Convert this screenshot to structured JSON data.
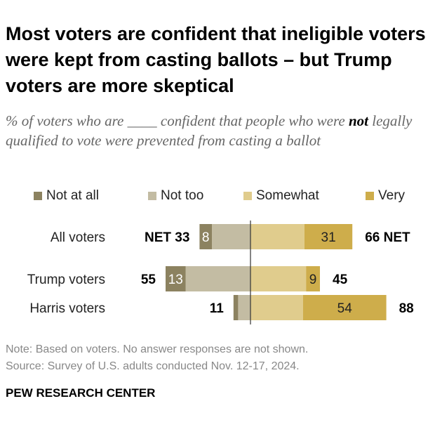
{
  "title": "Most voters are confident that ineligible voters were kept from casting ballots – but Trump voters are more skeptical",
  "subtitle_before": "% of voters who are ____ confident that people who were ",
  "subtitle_bold": "not",
  "subtitle_after": " legally qualified to vote were prevented from casting a ballot",
  "note": "Note: Based on voters. No answer responses are not shown.",
  "source": "Source: Survey of U.S. adults conducted Nov. 12-17, 2024.",
  "logo": "PEW RESEARCH CENTER",
  "chart_data": {
    "type": "bar",
    "orientation": "horizontal-diverging",
    "categories": [
      "All voters",
      "Trump voters",
      "Harris voters"
    ],
    "series": [
      {
        "name": "Not at all",
        "values": [
          8,
          13,
          3
        ],
        "color": "#8c8260",
        "side": "negative"
      },
      {
        "name": "Not too",
        "values": [
          25,
          42,
          8
        ],
        "color": "#c3bca3",
        "side": "negative"
      },
      {
        "name": "Somewhat",
        "values": [
          35,
          36,
          34
        ],
        "color": "#e0cc8d",
        "side": "positive"
      },
      {
        "name": "Very",
        "values": [
          31,
          9,
          54
        ],
        "color": "#cead4b",
        "side": "positive"
      }
    ],
    "net_negative": [
      33,
      55,
      11
    ],
    "net_positive": [
      66,
      45,
      88
    ],
    "net_label": "NET",
    "data_labels_shown": {
      "Not at all": [
        8,
        13,
        null
      ],
      "Very": [
        31,
        9,
        54
      ]
    },
    "legend_position": "top"
  }
}
